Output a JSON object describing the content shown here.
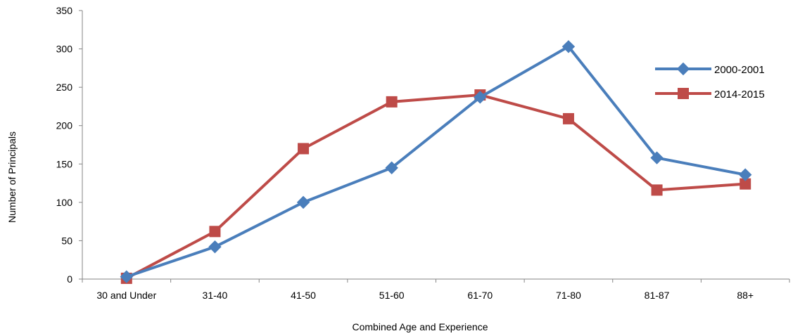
{
  "chart_data": {
    "type": "line",
    "title": "",
    "xlabel": "Combined Age and Experience",
    "ylabel": "Number of Principals",
    "categories": [
      "30 and Under",
      "31-40",
      "41-50",
      "51-60",
      "61-70",
      "71-80",
      "81-87",
      "88+"
    ],
    "ylim": [
      0,
      350
    ],
    "yticks": [
      "0",
      "50",
      "100",
      "150",
      "200",
      "250",
      "300",
      "350"
    ],
    "grid": false,
    "legend_position": "right",
    "series": [
      {
        "name": "2000-2001",
        "values": [
          3,
          42,
          100,
          145,
          237,
          303,
          158,
          136
        ],
        "color": "#4a7ebb",
        "marker": "diamond"
      },
      {
        "name": "2014-2015",
        "values": [
          1,
          62,
          170,
          231,
          240,
          209,
          116,
          124
        ],
        "color": "#be4b48",
        "marker": "square"
      }
    ]
  }
}
